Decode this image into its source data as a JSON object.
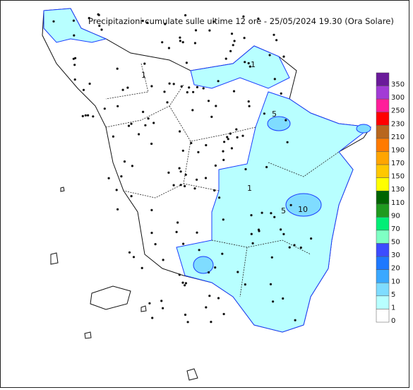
{
  "header": {
    "title": "Precipitazioni cumulate sulle ultime 12 ore - 25/05/2024 19.30 (Ora Solare)"
  },
  "legend": {
    "levels": [
      350,
      300,
      250,
      230,
      210,
      190,
      170,
      150,
      130,
      110,
      90,
      70,
      50,
      30,
      20,
      10,
      5,
      1,
      0
    ],
    "colors": [
      "#6a1a9a",
      "#a23bd6",
      "#ff1e9a",
      "#ff0000",
      "#b8661e",
      "#ff7a00",
      "#ffa500",
      "#ffc800",
      "#ffff00",
      "#006400",
      "#1f9a1f",
      "#00ee76",
      "#7fffc4",
      "#3c4cff",
      "#1e78ff",
      "#3aa8ff",
      "#7fdcff",
      "#b8ffff",
      "#ffffff"
    ]
  },
  "contour_labels": [
    "1",
    "5",
    "10",
    "1",
    "5",
    "1"
  ]
}
